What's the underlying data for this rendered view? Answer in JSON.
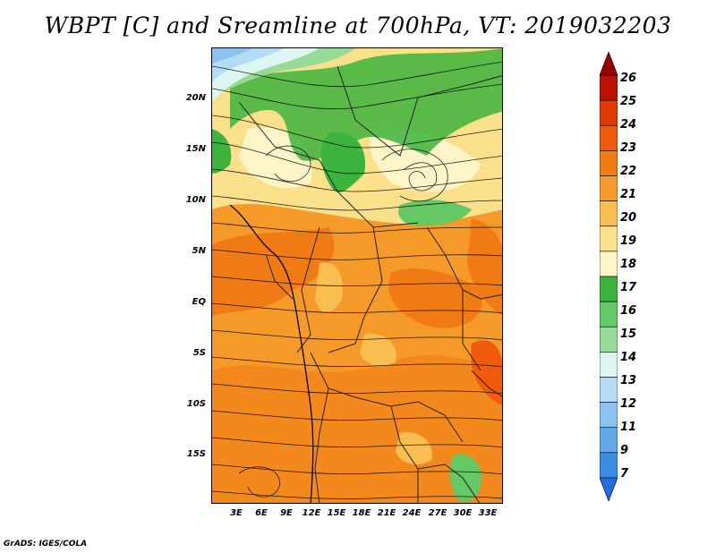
{
  "title": "WBPT [C] and Sreamline at 700hPa, VT: 2019032203",
  "credit": "GrADS: IGES/COLA",
  "map": {
    "region": "Central Africa",
    "lat_labels": [
      "20N",
      "15N",
      "10N",
      "5N",
      "EQ",
      "5S",
      "10S",
      "15S"
    ],
    "lon_labels": [
      "3E",
      "6E",
      "9E",
      "12E",
      "15E",
      "18E",
      "21E",
      "24E",
      "27E",
      "30E",
      "33E"
    ]
  },
  "colorbar": {
    "labels": [
      "26",
      "25",
      "24",
      "23",
      "22",
      "21",
      "20",
      "19",
      "18",
      "17",
      "16",
      "15",
      "14",
      "13",
      "12",
      "11",
      "9",
      "7"
    ],
    "colors": [
      "#9b0000",
      "#c01000",
      "#e03a00",
      "#f05a0a",
      "#f07a14",
      "#f59a28",
      "#f8be50",
      "#fbe08c",
      "#fdf5c8",
      "#3cb33c",
      "#64c864",
      "#96dc96",
      "#dcf5f0",
      "#b4dcf5",
      "#8cc3f0",
      "#64aaeb",
      "#3c8ce6",
      "#1e6ee0"
    ]
  }
}
